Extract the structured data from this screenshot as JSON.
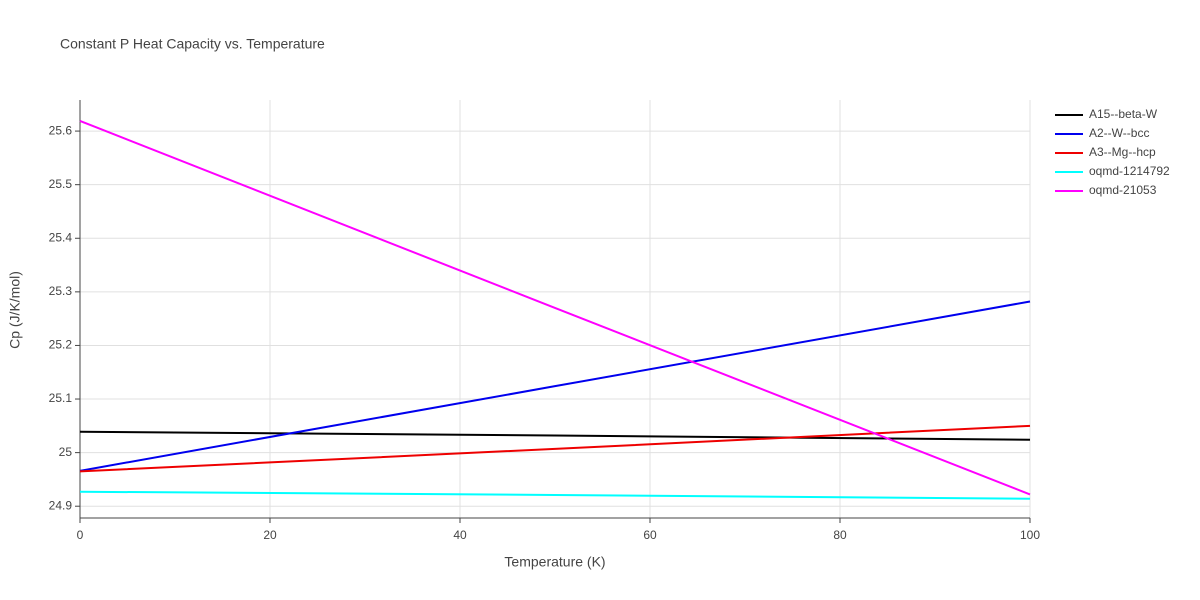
{
  "chart_data": {
    "type": "line",
    "title": "Constant P Heat Capacity vs. Temperature",
    "x_label": "Temperature (K)",
    "y_label": "Cp (J/K/mol)",
    "x": [
      0,
      50,
      100
    ],
    "series": [
      {
        "name": "A15--beta-W",
        "color": "#000000",
        "values": [
          25.039,
          25.032,
          25.024
        ]
      },
      {
        "name": "A2--W--bcc",
        "color": "#0000ee",
        "values": [
          24.966,
          25.124,
          25.282
        ]
      },
      {
        "name": "A3--Mg--hcp",
        "color": "#ee0000",
        "values": [
          24.965,
          25.007,
          25.05
        ]
      },
      {
        "name": "oqmd-1214792",
        "color": "#00ffff",
        "values": [
          24.927,
          24.921,
          24.914
        ]
      },
      {
        "name": "oqmd-21053",
        "color": "#ff00ff",
        "values": [
          25.619,
          25.27,
          24.922
        ]
      }
    ],
    "xlim": [
      0,
      100
    ],
    "xticks": [
      0,
      20,
      40,
      60,
      80,
      100
    ],
    "ylim": [
      24.878,
      25.658
    ],
    "yticks": [
      {
        "value": 24.9,
        "label": "24.9"
      },
      25,
      25.1,
      25.2,
      25.3,
      25.4,
      25.5,
      25.6
    ],
    "grid": true,
    "legend": "top-right"
  }
}
